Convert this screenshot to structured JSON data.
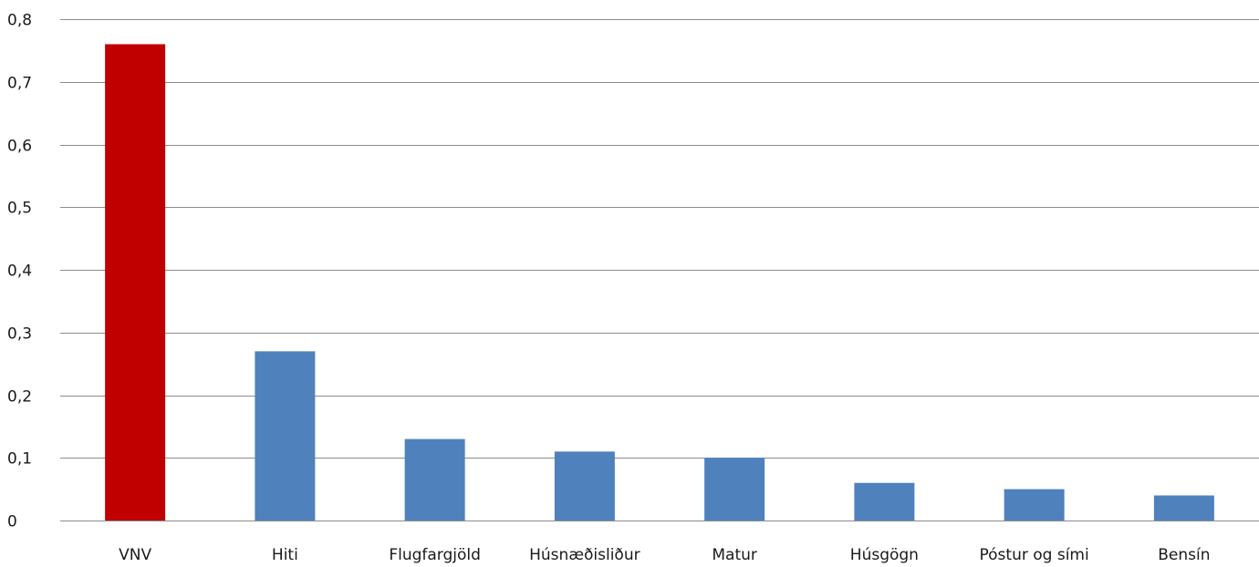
{
  "chart_data": {
    "type": "bar",
    "categories": [
      "VNV",
      "Hiti",
      "Flugfargjöld",
      "Húsnæðisliður",
      "Matur",
      "Húsgögn",
      "Póstur og sími",
      "Bensín"
    ],
    "values": [
      0.76,
      0.27,
      0.13,
      0.11,
      0.1,
      0.06,
      0.05,
      0.04
    ],
    "colors": [
      "#c00000",
      "#4f81bd",
      "#4f81bd",
      "#4f81bd",
      "#4f81bd",
      "#4f81bd",
      "#4f81bd",
      "#4f81bd"
    ],
    "title": "",
    "xlabel": "",
    "ylabel": "",
    "ylim": [
      0,
      0.8
    ],
    "y_ticks": [
      0,
      0.1,
      0.2,
      0.3,
      0.4,
      0.5,
      0.6,
      0.7,
      0.8
    ],
    "y_tick_labels": [
      "0",
      "0,1",
      "0,2",
      "0,3",
      "0,4",
      "0,5",
      "0,6",
      "0,7",
      "0,8"
    ],
    "grid": true,
    "legend": "none"
  }
}
